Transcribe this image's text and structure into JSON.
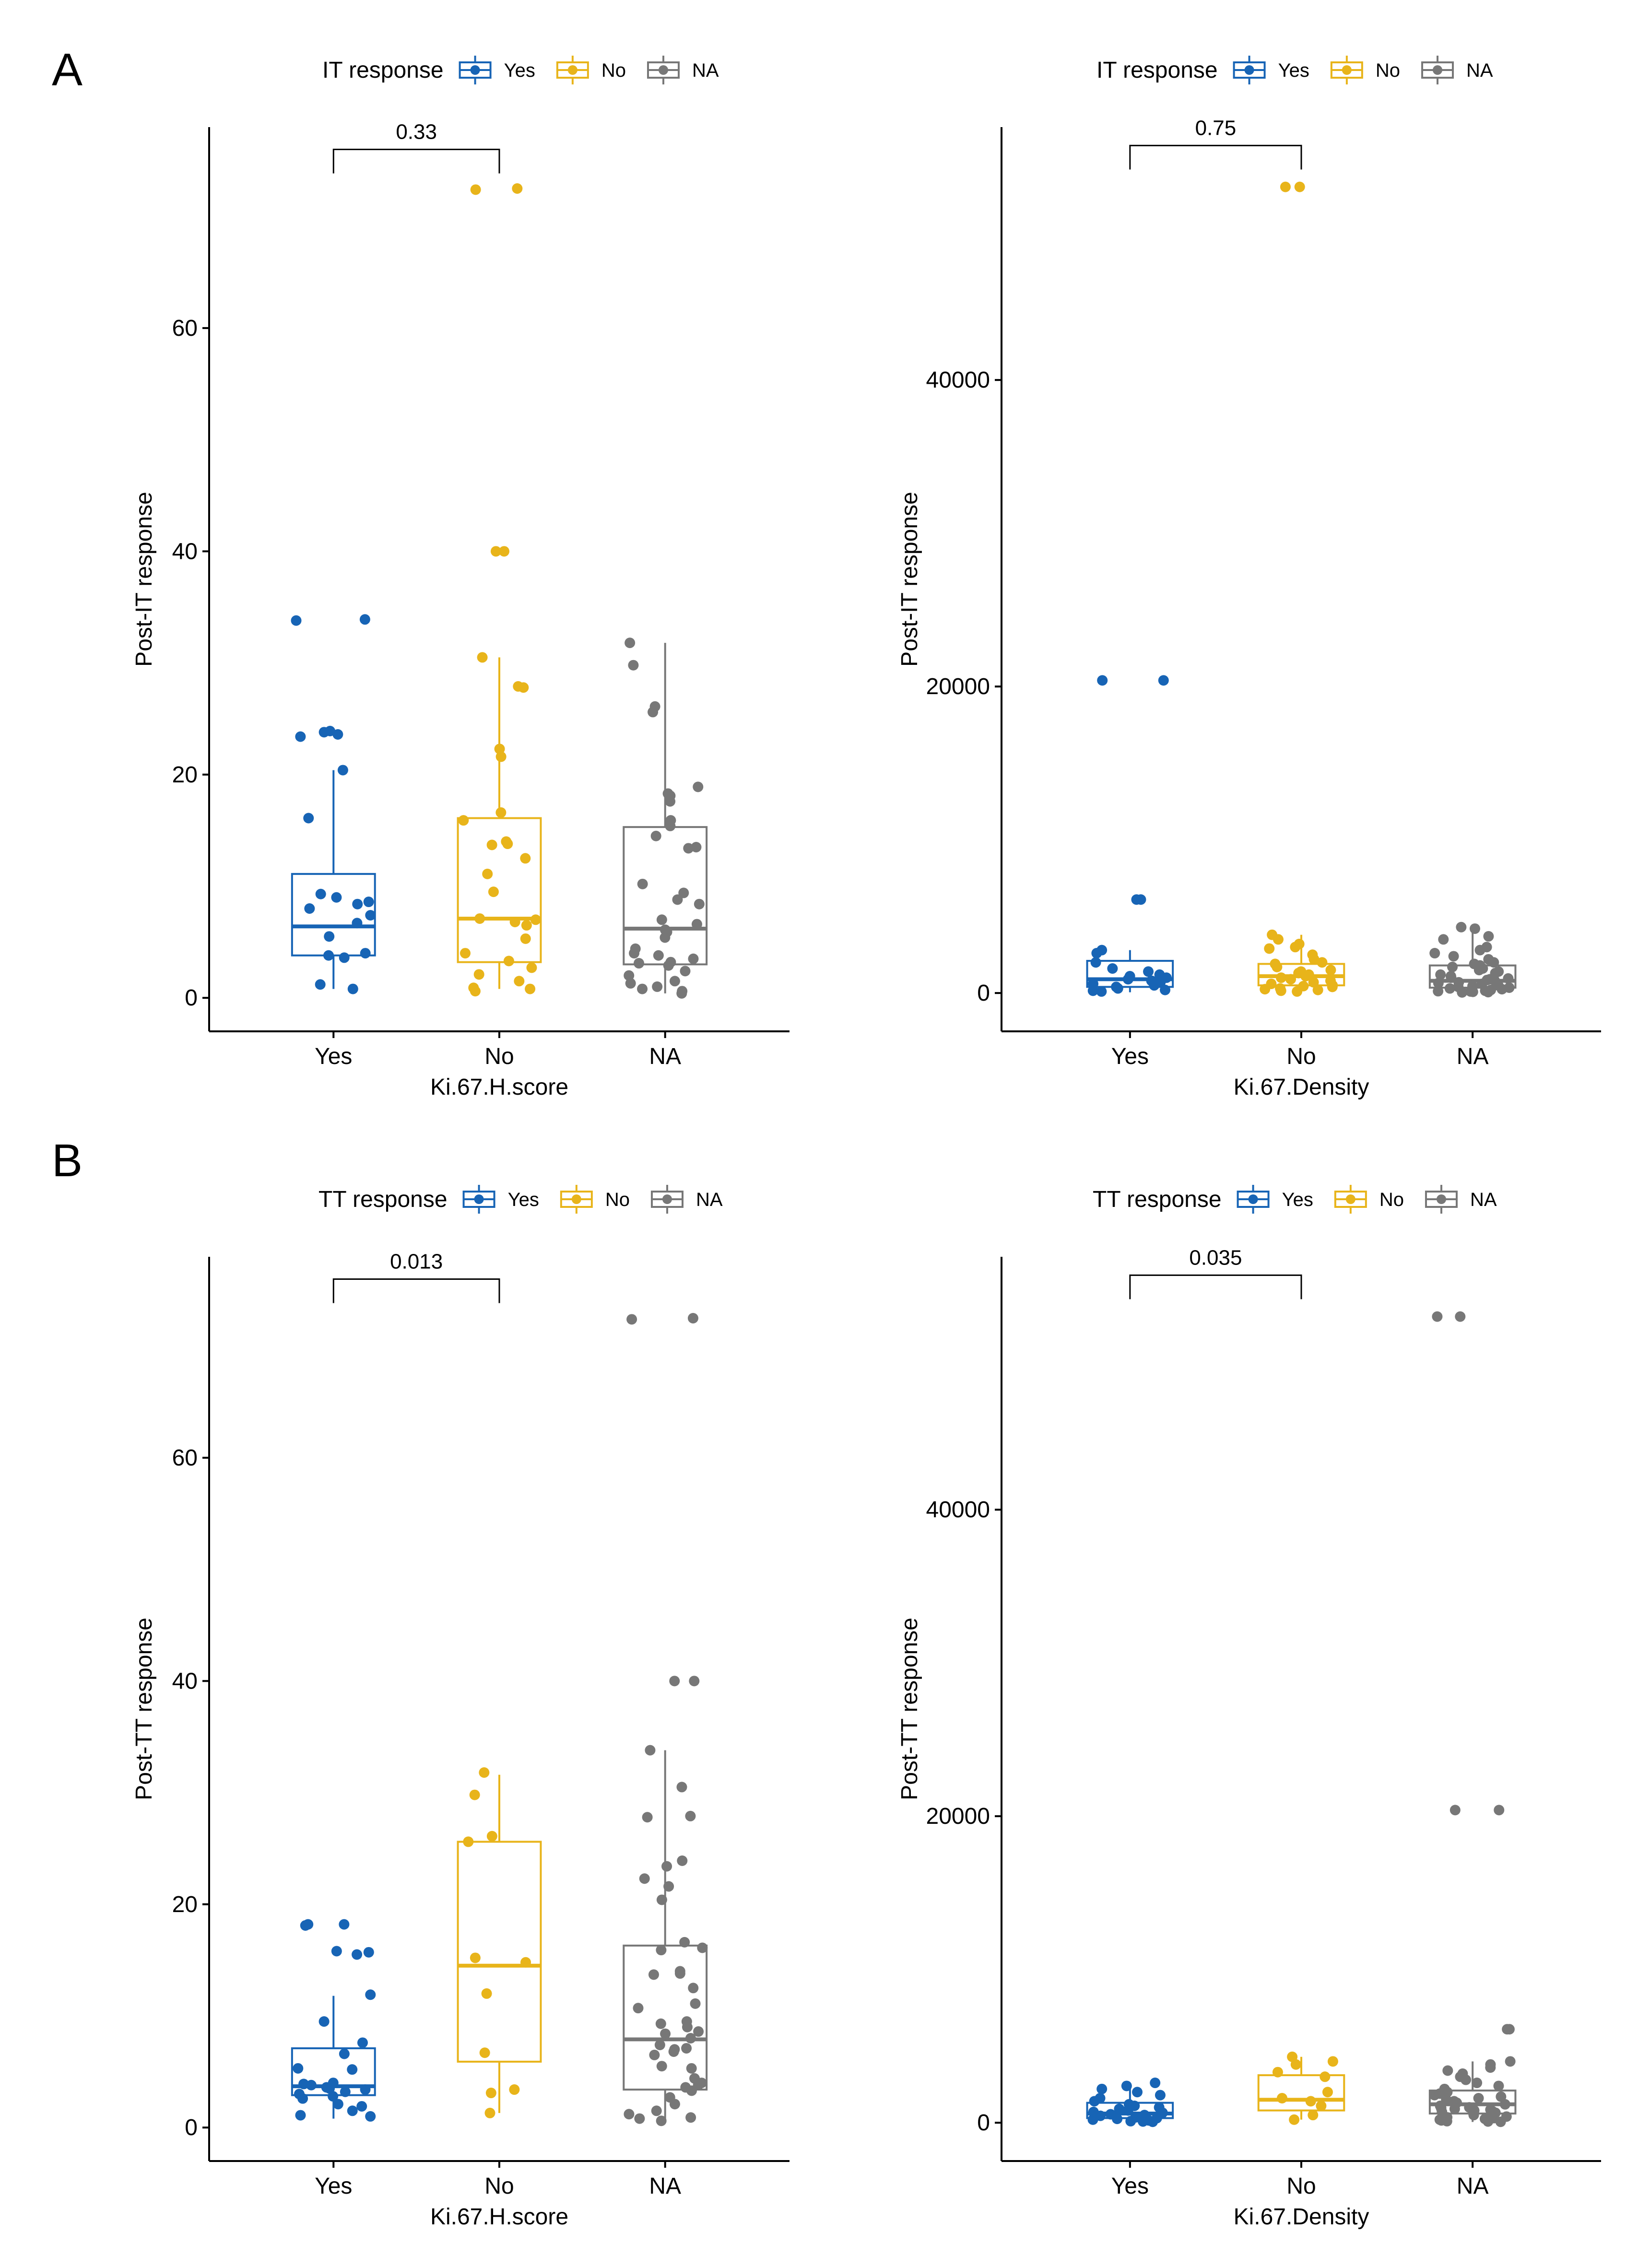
{
  "figure": {
    "panel_labels": [
      "A",
      "B"
    ]
  },
  "colors": {
    "Yes": "#1764b5",
    "No": "#e8b41a",
    "NA": "#777777"
  },
  "chart_data": [
    {
      "id": "A-left",
      "panel": "A",
      "type": "box",
      "legend_title": "IT response",
      "legend_labels": [
        "Yes",
        "No",
        "NA"
      ],
      "xlabel": "Ki.67.H.score",
      "ylabel": "Post-IT response",
      "categories": [
        "Yes",
        "No",
        "NA"
      ],
      "ylim": [
        -3,
        78
      ],
      "yticks": [
        0,
        20,
        40,
        60
      ],
      "ytick_labels": [
        "0",
        "20",
        "40",
        "60"
      ],
      "comparison": {
        "groups": [
          "Yes",
          "No"
        ],
        "p_value": "0.33",
        "y": 76
      },
      "boxes": [
        {
          "q1": 3.8,
          "median": 6.4,
          "q3": 11.1,
          "whisker_low": 0.8,
          "whisker_high": 20.4
        },
        {
          "q1": 3.2,
          "median": 7.1,
          "q3": 16.1,
          "whisker_low": 0.8,
          "whisker_high": 30.5
        },
        {
          "q1": 3.0,
          "median": 6.2,
          "q3": 15.3,
          "whisker_low": 0.4,
          "whisker_high": 31.8
        }
      ],
      "points": [
        [
          33.8,
          33.9,
          23.4,
          23.6,
          23.8,
          23.9,
          20.4,
          16.1,
          9.3,
          9.0,
          8.6,
          8.4,
          8.0,
          7.4,
          6.7,
          5.5,
          4.0,
          3.8,
          3.6,
          1.2,
          0.8
        ],
        [
          72.4,
          72.5,
          40.0,
          40.0,
          30.5,
          27.8,
          27.9,
          22.3,
          21.6,
          16.6,
          15.9,
          14.0,
          13.8,
          13.7,
          12.5,
          11.1,
          9.5,
          7.1,
          7.0,
          6.8,
          6.5,
          5.3,
          4.0,
          3.3,
          2.7,
          2.1,
          1.5,
          0.9,
          0.8,
          0.6
        ],
        [
          31.8,
          29.8,
          26.1,
          25.6,
          18.9,
          18.3,
          18.1,
          17.6,
          15.9,
          15.4,
          14.5,
          13.5,
          13.4,
          10.2,
          9.4,
          8.8,
          8.4,
          7.0,
          6.6,
          6.1,
          5.9,
          5.4,
          4.4,
          4.0,
          3.8,
          3.5,
          3.2,
          3.1,
          2.9,
          2.4,
          2.0,
          1.5,
          1.3,
          1.0,
          0.8,
          0.6,
          0.4
        ]
      ]
    },
    {
      "id": "A-right",
      "panel": "A",
      "type": "box",
      "legend_title": "IT response",
      "legend_labels": [
        "Yes",
        "No",
        "NA"
      ],
      "xlabel": "Ki.67.Density",
      "ylabel": "Post-IT response",
      "categories": [
        "Yes",
        "No",
        "NA"
      ],
      "ylim": [
        -2500,
        56500
      ],
      "yticks": [
        0,
        20000,
        40000
      ],
      "ytick_labels": [
        "0",
        "20000",
        "40000"
      ],
      "comparison": {
        "groups": [
          "Yes",
          "No"
        ],
        "p_value": "0.75",
        "y": 55300
      },
      "boxes": [
        {
          "q1": 400,
          "median": 900,
          "q3": 2100,
          "whisker_low": 50,
          "whisker_high": 2800
        },
        {
          "q1": 500,
          "median": 1100,
          "q3": 1900,
          "whisker_low": 50,
          "whisker_high": 3800
        },
        {
          "q1": 350,
          "median": 800,
          "q3": 1800,
          "whisker_low": 50,
          "whisker_high": 4200
        }
      ],
      "points": [
        [
          20400,
          20400,
          6100,
          6100,
          2800,
          2600,
          2000,
          1600,
          1400,
          1200,
          1100,
          1000,
          900,
          800,
          700,
          600,
          500,
          400,
          300,
          200,
          150,
          100
        ],
        [
          52600,
          52600,
          3800,
          3500,
          3200,
          3000,
          2900,
          2500,
          2200,
          2000,
          1900,
          1700,
          1500,
          1400,
          1300,
          1200,
          1100,
          1000,
          900,
          800,
          700,
          600,
          500,
          450,
          400,
          300,
          250,
          200,
          150,
          100
        ],
        [
          4300,
          4200,
          3700,
          3500,
          3000,
          2800,
          2600,
          2400,
          2200,
          2000,
          1900,
          1800,
          1700,
          1600,
          1500,
          1400,
          1300,
          1200,
          1100,
          1000,
          950,
          900,
          850,
          800,
          700,
          650,
          600,
          500,
          450,
          400,
          350,
          300,
          250,
          200,
          150,
          120,
          100,
          80,
          60,
          40
        ]
      ]
    },
    {
      "id": "B-left",
      "panel": "B",
      "type": "box",
      "legend_title": "TT response",
      "legend_labels": [
        "Yes",
        "No",
        "NA"
      ],
      "xlabel": "Ki.67.H.score",
      "ylabel": "Post-TT response",
      "categories": [
        "Yes",
        "No",
        "NA"
      ],
      "ylim": [
        -3,
        78
      ],
      "yticks": [
        0,
        20,
        40,
        60
      ],
      "ytick_labels": [
        "0",
        "20",
        "40",
        "60"
      ],
      "comparison": {
        "groups": [
          "Yes",
          "No"
        ],
        "p_value": "0.013",
        "y": 76
      },
      "boxes": [
        {
          "q1": 2.9,
          "median": 3.7,
          "q3": 7.1,
          "whisker_low": 0.8,
          "whisker_high": 11.8
        },
        {
          "q1": 5.9,
          "median": 14.5,
          "q3": 25.6,
          "whisker_low": 1.3,
          "whisker_high": 31.6
        },
        {
          "q1": 3.4,
          "median": 7.9,
          "q3": 16.3,
          "whisker_low": 0.4,
          "whisker_high": 33.8
        }
      ],
      "points": [
        [
          18.2,
          18.1,
          18.2,
          15.7,
          15.8,
          15.5,
          11.9,
          9.5,
          7.6,
          6.6,
          5.3,
          5.2,
          4.0,
          3.9,
          3.8,
          3.6,
          3.5,
          3.4,
          3.2,
          3.0,
          2.8,
          2.6,
          2.1,
          1.9,
          1.5,
          1.1,
          1.0
        ],
        [
          31.8,
          29.8,
          26.1,
          25.6,
          15.2,
          14.8,
          12.0,
          6.7,
          3.4,
          3.1,
          1.3
        ],
        [
          72.4,
          72.5,
          40.0,
          40.0,
          33.8,
          30.5,
          27.8,
          27.9,
          23.9,
          23.4,
          22.3,
          21.6,
          20.4,
          16.6,
          16.1,
          15.9,
          14.0,
          13.8,
          13.7,
          12.5,
          11.1,
          10.7,
          9.5,
          9.3,
          9.0,
          8.6,
          8.4,
          8.0,
          7.4,
          7.1,
          7.0,
          6.8,
          6.5,
          5.5,
          5.3,
          4.4,
          4.0,
          3.8,
          3.6,
          3.3,
          2.7,
          2.1,
          1.5,
          1.2,
          0.9,
          0.8,
          0.6
        ]
      ]
    },
    {
      "id": "B-right",
      "panel": "B",
      "type": "box",
      "legend_title": "TT response",
      "legend_labels": [
        "Yes",
        "No",
        "NA"
      ],
      "xlabel": "Ki.67.Density",
      "ylabel": "Post-TT response",
      "categories": [
        "Yes",
        "No",
        "NA"
      ],
      "ylim": [
        -2500,
        56500
      ],
      "yticks": [
        0,
        20000,
        40000
      ],
      "ytick_labels": [
        "0",
        "20000",
        "40000"
      ],
      "comparison": {
        "groups": [
          "Yes",
          "No"
        ],
        "p_value": "0.035",
        "y": 55300
      },
      "boxes": [
        {
          "q1": 300,
          "median": 600,
          "q3": 1300,
          "whisker_low": 50,
          "whisker_high": 2500
        },
        {
          "q1": 800,
          "median": 1500,
          "q3": 3100,
          "whisker_low": 200,
          "whisker_high": 4300
        },
        {
          "q1": 600,
          "median": 1200,
          "q3": 2100,
          "whisker_low": 50,
          "whisker_high": 4000
        }
      ],
      "points": [
        [
          2600,
          2400,
          2200,
          2000,
          1800,
          1600,
          1400,
          1200,
          1100,
          1000,
          900,
          800,
          700,
          650,
          600,
          550,
          500,
          450,
          400,
          350,
          300,
          250,
          200,
          150,
          100,
          80,
          60
        ],
        [
          4300,
          4000,
          3800,
          3300,
          3000,
          2000,
          1600,
          1400,
          1100,
          500,
          200
        ],
        [
          52600,
          52600,
          20400,
          20400,
          6100,
          6100,
          4000,
          3800,
          3600,
          3400,
          3200,
          3000,
          2800,
          2600,
          2400,
          2200,
          2000,
          1900,
          1800,
          1700,
          1600,
          1500,
          1400,
          1300,
          1200,
          1100,
          1000,
          950,
          900,
          850,
          800,
          750,
          700,
          650,
          600,
          550,
          500,
          450,
          400,
          350,
          300,
          250,
          200,
          150,
          100,
          80,
          60
        ]
      ]
    }
  ]
}
